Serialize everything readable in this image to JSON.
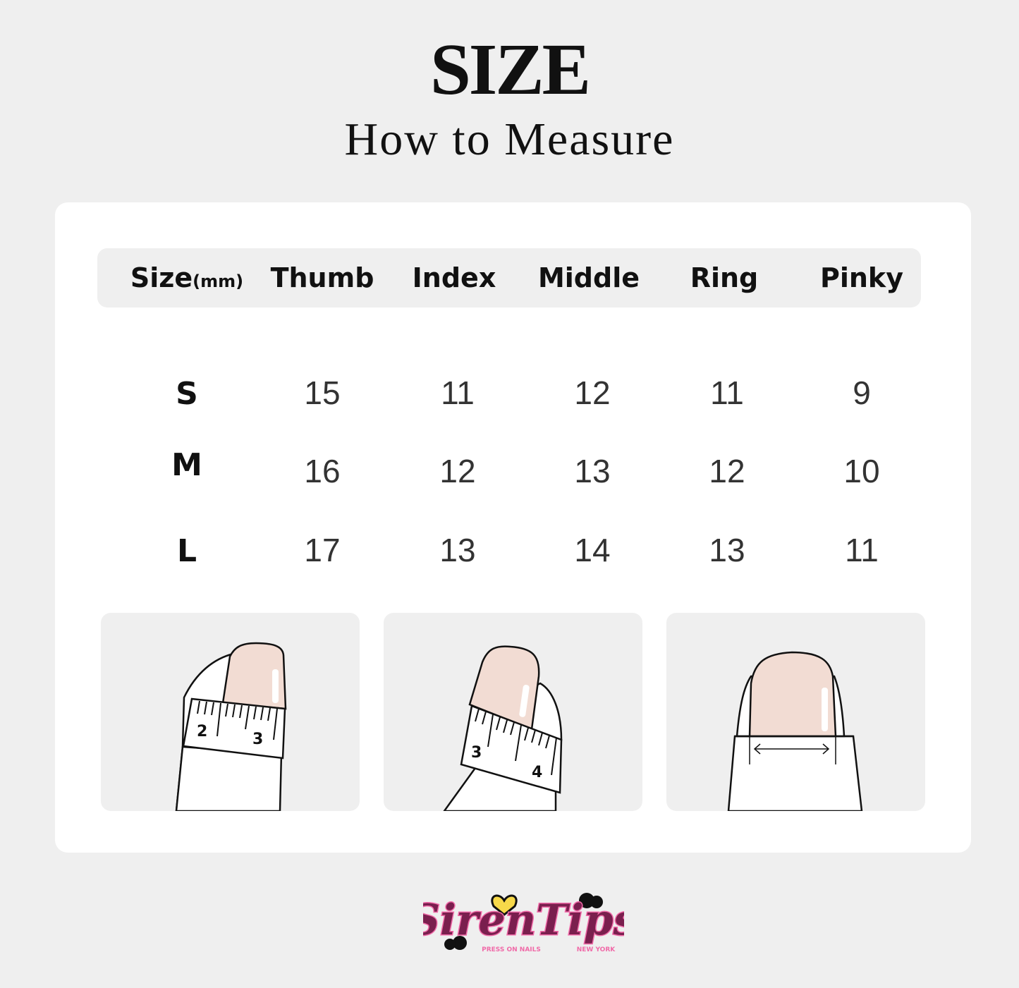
{
  "header": {
    "title": "SIZE",
    "subtitle": "How to Measure"
  },
  "table": {
    "columns": {
      "size": "Size",
      "unit": "(mm)",
      "thumb": "Thumb",
      "index": "Index",
      "middle": "Middle",
      "ring": "Ring",
      "pinky": "Pinky"
    },
    "rows": [
      {
        "size": "S",
        "values": [
          "15",
          "11",
          "12",
          "11",
          "9"
        ]
      },
      {
        "size": "M",
        "values": [
          "16",
          "12",
          "13",
          "12",
          "10"
        ]
      },
      {
        "size": "L",
        "values": [
          "17",
          "13",
          "14",
          "13",
          "11"
        ]
      }
    ]
  },
  "illustrations": {
    "thumb_tape_marks": [
      "2",
      "3"
    ],
    "index_tape_marks": [
      "3",
      "4"
    ]
  },
  "logo": {
    "brand": "SirenTips",
    "tagline_left": "PRESS ON NAILS",
    "tagline_right": "NEW YORK"
  },
  "colors": {
    "background": "#efefef",
    "card": "#ffffff",
    "nail": "#f2dcd3",
    "logo_pink": "#f06aa8",
    "logo_dark": "#5a1a3a"
  }
}
